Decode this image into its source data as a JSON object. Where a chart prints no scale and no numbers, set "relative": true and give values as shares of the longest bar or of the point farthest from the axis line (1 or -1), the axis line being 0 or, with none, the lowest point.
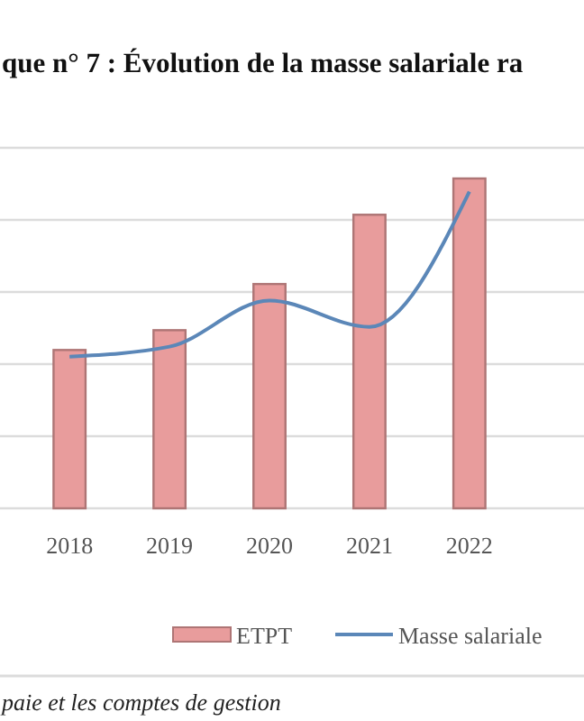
{
  "chart_data": {
    "type": "bar",
    "title": "que n° 7 :  Évolution de la masse salariale ra",
    "relative": true,
    "grid": true,
    "legend": "bottom",
    "categories": [
      "2018",
      "2019",
      "2020",
      "2021",
      "2022"
    ],
    "series": [
      {
        "name": "ETPT",
        "color": "#e89c9c",
        "values": [
          0.48,
          0.54,
          0.68,
          0.89,
          1
        ]
      },
      {
        "name": "Masse salariale",
        "type": "line",
        "color": "#5b87b8",
        "values": [
          0.46,
          0.49,
          0.63,
          0.55,
          0.96
        ]
      }
    ],
    "annotations": [
      "paie et les comptes de gestion"
    ]
  }
}
